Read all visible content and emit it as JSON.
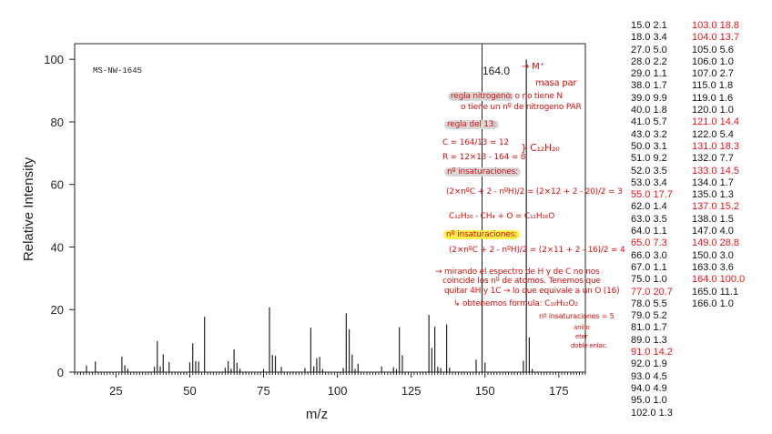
{
  "chart_data": {
    "type": "bar",
    "title": "MS-NW-1645",
    "xlabel": "m/z",
    "ylabel": "Relative Intensity",
    "xlim": [
      11,
      184
    ],
    "ylim": [
      0,
      105
    ],
    "xticks": [
      25,
      50,
      75,
      100,
      125,
      150,
      175
    ],
    "yticks": [
      0,
      20,
      40,
      60,
      80,
      100
    ],
    "peak_label": "164.0",
    "x": [
      15,
      18,
      27,
      28,
      29,
      38,
      39,
      40,
      41,
      43,
      50,
      51,
      52,
      53,
      55,
      62,
      63,
      64,
      65,
      66,
      67,
      75,
      77,
      78,
      79,
      81,
      89,
      91,
      92,
      93,
      94,
      95,
      102,
      103,
      104,
      105,
      106,
      107,
      115,
      119,
      120,
      121,
      122,
      131,
      132,
      133,
      134,
      135,
      137,
      138,
      147,
      149,
      150,
      163,
      164,
      165,
      166
    ],
    "values": [
      2.1,
      3.4,
      5.0,
      2.2,
      1.1,
      1.7,
      9.9,
      1.8,
      5.7,
      3.2,
      3.1,
      9.2,
      3.5,
      3.4,
      17.7,
      1.4,
      3.5,
      1.1,
      7.3,
      3.0,
      1.1,
      1.0,
      20.7,
      5.5,
      5.2,
      1.7,
      1.3,
      14.2,
      1.9,
      4.5,
      4.9,
      1.0,
      1.3,
      18.8,
      13.7,
      5.6,
      1.0,
      2.7,
      1.8,
      1.6,
      1.0,
      14.4,
      5.4,
      18.3,
      7.7,
      14.5,
      1.7,
      1.3,
      15.2,
      1.5,
      4.0,
      28.8,
      3.0,
      3.6,
      100.0,
      11.1,
      1.0
    ],
    "highlighted": [
      55,
      65,
      77,
      91,
      103,
      104,
      121,
      131,
      133,
      137,
      149,
      164
    ]
  },
  "peak_table": {
    "col1": [
      "15.0 2.1",
      "18.0 3.4",
      "27.0 5.0",
      "28.0 2.2",
      "29.0 1.1",
      "38.0 1.7",
      "39.0 9.9",
      "40.0 1.8",
      "41.0 5.7",
      "43.0 3.2",
      "50.0 3.1",
      "51.0 9.2",
      "52.0 3.5",
      "53.0 3.4",
      "55.0 17.7",
      "62.0 1.4",
      "63.0 3.5",
      "64.0 1.1",
      "65.0 7.3",
      "66.0 3.0",
      "67.0 1.1",
      "75.0 1.0",
      "77.0 20.7",
      "78.0 5.5",
      "79.0 5.2",
      "81.0 1.7",
      "89.0 1.3",
      "91.0 14.2",
      "92.0 1.9",
      "93.0 4.5",
      "94.0 4.9",
      "95.0 1.0",
      "102.0 1.3"
    ],
    "col1_hl": [
      14,
      18,
      22,
      27
    ],
    "col2": [
      "103.0 18.8",
      "104.0 13.7",
      "105.0 5.6",
      "106.0 1.0",
      "107.0 2.7",
      "115.0 1.8",
      "119.0 1.6",
      "120.0 1.0",
      "121.0 14.4",
      "122.0 5.4",
      "131.0 18.3",
      "132.0 7.7",
      "133.0 14.5",
      "134.0 1.7",
      "135.0 1.3",
      "137.0 15.2",
      "138.0 1.5",
      "147.0 4.0",
      "149.0 28.8",
      "150.0 3.0",
      "163.0 3.6",
      "164.0 100.0",
      "165.0 11.1",
      "166.0 1.0"
    ],
    "col2_hl": [
      0,
      1,
      8,
      10,
      12,
      15,
      18,
      21
    ]
  },
  "notes": {
    "m_plus": "→ M⁺",
    "masa_par": "masa par",
    "regla_n": "regla nitrogeno",
    "regla_n_text": ": o no tiene N",
    "regla_n_text2": "o tiene un nº de nitrogeno PAR",
    "regla13": "regla del 13:",
    "c_eq": "C = 164/13 = 12",
    "r_eq": "R = 12×13 - 164 = 8",
    "formula1": "} C₁₂H₂₀",
    "insat1": "nº insaturaciones:",
    "insat1_eq": "(2×nºC + 2 - nºH)/2 = (2×12 + 2 - 20)/2 = 3",
    "sub_eq": "C₁₂H₂₀ - CH₄ + O = C₁₁H₁₆O",
    "insat2": "nº insaturaciones:",
    "insat2_eq": "(2×nºC + 2 - nºH)/2 = (2×11 + 2 - 16)/2 = 4",
    "obs1": "→ mirando el espectro de H y de C no nos",
    "obs2": "coincide los nº de atomos. Tenemos que",
    "obs3": "quitar 4H y 1C → lo que equivale a un O (16)",
    "final": "↳ obtenemos formula: C₁₀H₁₂O₂",
    "insat3": "nº insaturaciones = 5",
    "anillo": "anillo",
    "eter": "eter",
    "doble": "doble enlac."
  }
}
